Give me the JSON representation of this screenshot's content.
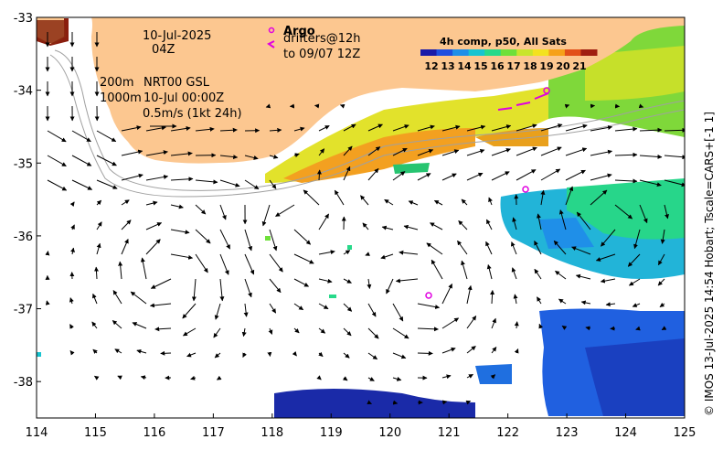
{
  "annotations": {
    "date": "10-Jul-2025",
    "time": "04Z",
    "depth_200": "200m",
    "depth_1000": "1000m",
    "product": "NRT00 GSL",
    "product_time": "10-Jul 00:00Z",
    "scale_vector": "0.5m/s (1kt 24h)"
  },
  "legend": {
    "argo_label": "Argo",
    "drifters_label": "drifters@12h",
    "drifters_to": "to 09/07 12Z"
  },
  "colorbar": {
    "title": "4h comp, p50, All Sats",
    "ticks": [
      "12",
      "13",
      "14",
      "15",
      "16",
      "17",
      "18",
      "19",
      "20",
      "21"
    ],
    "colors": [
      "#1a1aa8",
      "#1f4fe0",
      "#1f8fe8",
      "#17c4d0",
      "#27d98a",
      "#6fe03a",
      "#c9e52c",
      "#f3e21f",
      "#f6a11a",
      "#e2501a",
      "#a01e10"
    ]
  },
  "axes": {
    "x_ticks": [
      "114",
      "115",
      "116",
      "117",
      "118",
      "119",
      "120",
      "121",
      "122",
      "123",
      "124",
      "125"
    ],
    "y_ticks": [
      "-33",
      "-34",
      "-35",
      "-36",
      "-37",
      "-38"
    ],
    "xlim": [
      114,
      125
    ],
    "ylim": [
      -38.5,
      -33
    ]
  },
  "colors": {
    "land": "#fcc790",
    "argo": "#e000e0"
  },
  "credit": "© IMOS 13-Jul-2025 14:54 Hobart; Tscale=CARS+[-1 1]"
}
